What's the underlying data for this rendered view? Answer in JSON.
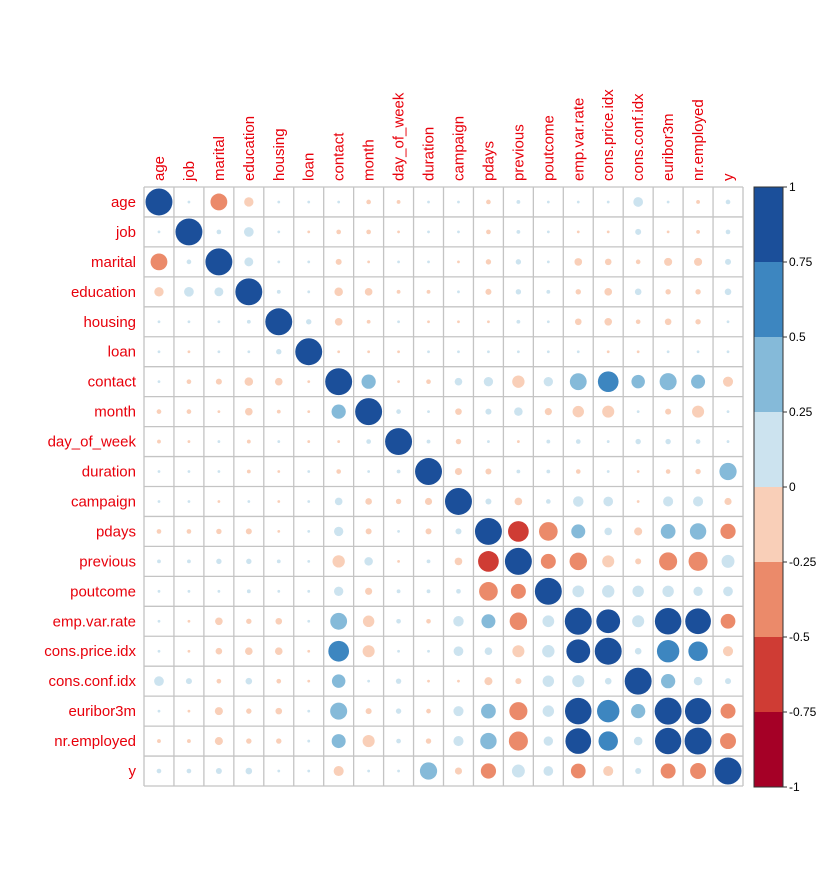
{
  "chart_data": {
    "type": "heatmap",
    "variables": [
      "age",
      "job",
      "marital",
      "education",
      "housing",
      "loan",
      "contact",
      "month",
      "day_of_week",
      "duration",
      "campaign",
      "pdays",
      "previous",
      "poutcome",
      "emp.var.rate",
      "cons.price.idx",
      "cons.conf.idx",
      "euribor3m",
      "nr.employed",
      "y"
    ],
    "matrix": [
      [
        1.0,
        0.0,
        -0.39,
        -0.12,
        0.0,
        0.0,
        0.0,
        -0.03,
        -0.02,
        0.0,
        0.0,
        -0.03,
        0.02,
        0.01,
        0.0,
        0.0,
        0.13,
        0.0,
        -0.02,
        0.03
      ],
      [
        0.0,
        1.0,
        0.03,
        0.13,
        0.01,
        -0.01,
        -0.03,
        -0.03,
        -0.01,
        0.0,
        0.0,
        -0.03,
        0.02,
        0.01,
        -0.01,
        -0.01,
        0.05,
        -0.01,
        -0.02,
        0.03
      ],
      [
        -0.39,
        0.03,
        1.0,
        0.11,
        0.01,
        0.01,
        -0.05,
        -0.01,
        0.0,
        0.01,
        -0.01,
        -0.04,
        0.04,
        0.0,
        -0.08,
        -0.06,
        -0.03,
        -0.09,
        -0.09,
        0.05
      ],
      [
        -0.12,
        0.13,
        0.11,
        1.0,
        0.02,
        0.01,
        -0.1,
        -0.08,
        -0.02,
        -0.02,
        0.0,
        -0.05,
        0.04,
        0.02,
        -0.04,
        -0.08,
        0.06,
        -0.04,
        -0.04,
        0.06
      ],
      [
        0.0,
        0.01,
        0.01,
        0.02,
        1.0,
        0.04,
        -0.08,
        -0.02,
        0.0,
        -0.01,
        -0.01,
        -0.01,
        0.02,
        0.01,
        -0.06,
        -0.08,
        -0.03,
        -0.06,
        -0.04,
        0.01
      ],
      [
        0.0,
        -0.01,
        0.01,
        0.01,
        0.04,
        1.0,
        -0.01,
        -0.01,
        -0.01,
        0.0,
        0.0,
        0.0,
        0.0,
        0.0,
        0.0,
        -0.01,
        -0.01,
        0.0,
        0.0,
        0.0
      ],
      [
        0.0,
        -0.03,
        -0.05,
        -0.1,
        -0.08,
        -0.01,
        1.0,
        0.28,
        -0.01,
        -0.03,
        0.08,
        0.12,
        -0.21,
        0.12,
        0.39,
        0.59,
        0.25,
        0.4,
        0.27,
        -0.14
      ],
      [
        -0.03,
        -0.03,
        -0.01,
        -0.08,
        -0.02,
        -0.01,
        0.28,
        1.0,
        0.03,
        0.0,
        -0.06,
        0.05,
        0.1,
        -0.07,
        -0.18,
        -0.2,
        0.0,
        -0.05,
        -0.2,
        0.0
      ],
      [
        -0.02,
        -0.01,
        0.0,
        -0.02,
        0.0,
        -0.01,
        -0.01,
        0.03,
        1.0,
        0.02,
        -0.04,
        0.01,
        -0.01,
        0.02,
        0.03,
        0.01,
        0.04,
        0.04,
        0.03,
        0.01
      ],
      [
        0.0,
        0.0,
        0.01,
        -0.02,
        -0.01,
        0.0,
        -0.03,
        0.0,
        0.02,
        1.0,
        -0.07,
        -0.05,
        0.02,
        0.02,
        -0.03,
        0.01,
        -0.01,
        -0.03,
        -0.04,
        0.41
      ],
      [
        0.0,
        0.0,
        -0.01,
        0.0,
        -0.01,
        0.0,
        0.08,
        -0.06,
        -0.04,
        -0.07,
        1.0,
        0.05,
        -0.08,
        0.03,
        0.15,
        0.13,
        -0.01,
        0.14,
        0.14,
        -0.07
      ],
      [
        -0.03,
        -0.03,
        -0.04,
        -0.05,
        -0.01,
        0.0,
        0.12,
        -0.05,
        0.01,
        -0.05,
        0.05,
        1.0,
        -0.59,
        -0.48,
        0.27,
        0.08,
        -0.09,
        0.3,
        0.37,
        -0.32
      ],
      [
        0.02,
        0.02,
        0.04,
        0.04,
        0.02,
        0.0,
        -0.21,
        0.1,
        -0.01,
        0.02,
        -0.08,
        -0.59,
        1.0,
        -0.31,
        -0.42,
        -0.2,
        -0.05,
        -0.45,
        -0.5,
        0.23
      ],
      [
        0.01,
        0.01,
        0.0,
        0.02,
        0.01,
        0.0,
        0.12,
        -0.07,
        0.02,
        0.02,
        0.03,
        -0.48,
        -0.31,
        1.0,
        0.19,
        0.21,
        0.18,
        0.18,
        0.12,
        0.13
      ],
      [
        0.0,
        -0.01,
        -0.08,
        -0.04,
        -0.06,
        0.0,
        0.39,
        -0.18,
        0.03,
        -0.03,
        0.15,
        0.27,
        -0.42,
        0.19,
        1.0,
        0.78,
        0.2,
        0.97,
        0.91,
        -0.3
      ],
      [
        0.0,
        -0.01,
        -0.06,
        -0.08,
        -0.08,
        -0.01,
        0.59,
        -0.2,
        0.01,
        0.01,
        0.13,
        0.08,
        -0.2,
        0.21,
        0.78,
        1.0,
        0.06,
        0.69,
        0.52,
        -0.14
      ],
      [
        0.13,
        0.05,
        -0.03,
        0.06,
        -0.03,
        -0.01,
        0.25,
        0.0,
        0.04,
        -0.01,
        -0.01,
        -0.09,
        -0.05,
        0.18,
        0.2,
        0.06,
        1.0,
        0.28,
        0.1,
        0.05
      ],
      [
        0.0,
        -0.01,
        -0.09,
        -0.04,
        -0.06,
        0.0,
        0.4,
        -0.05,
        0.04,
        -0.03,
        0.14,
        0.3,
        -0.45,
        0.18,
        0.97,
        0.69,
        0.28,
        1.0,
        0.95,
        -0.31
      ],
      [
        -0.02,
        -0.02,
        -0.09,
        -0.04,
        -0.04,
        0.0,
        0.27,
        -0.2,
        0.03,
        -0.04,
        0.14,
        0.37,
        -0.5,
        0.12,
        0.91,
        0.52,
        0.1,
        0.95,
        1.0,
        -0.35
      ],
      [
        0.03,
        0.03,
        0.05,
        0.06,
        0.01,
        0.0,
        -0.14,
        0.0,
        0.01,
        0.41,
        -0.07,
        -0.32,
        0.23,
        0.13,
        -0.3,
        -0.14,
        0.05,
        -0.31,
        -0.35,
        1.0
      ]
    ],
    "colorbar": {
      "tick_labels": [
        "1",
        "0.75",
        "0.5",
        "0.25",
        "0",
        "-0.25",
        "-0.5",
        "-0.75",
        "-1"
      ],
      "range": [
        -1,
        1
      ],
      "bins": 8,
      "colors_neg_to_pos": [
        "#a50026",
        "#cf3c34",
        "#eb8a6a",
        "#f9cfb8",
        "#cce3ef",
        "#85bad9",
        "#3d86c0",
        "#1b4f9a"
      ]
    },
    "title": "",
    "xlabel": "",
    "ylabel": "",
    "grid": true,
    "legend_placement": "right"
  }
}
